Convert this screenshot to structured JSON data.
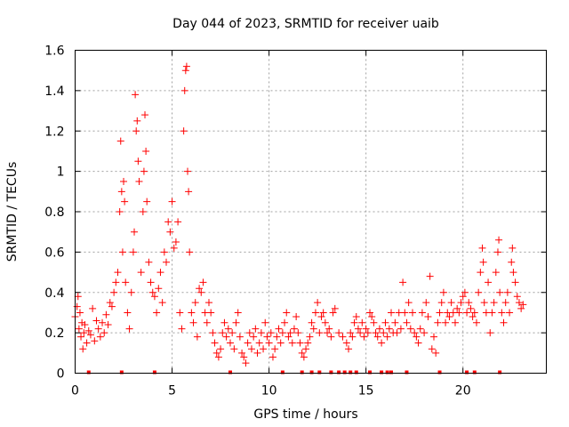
{
  "chart_data": {
    "type": "scatter",
    "title": "Day 044 of 2023, SRMTID for receiver uaib",
    "xlabel": "GPS time / hours",
    "ylabel": "SRMTID / TECUs",
    "xlim": [
      0,
      24.3
    ],
    "ylim": [
      0,
      1.6
    ],
    "x_ticks": [
      0,
      5,
      10,
      15,
      20
    ],
    "y_ticks": [
      0,
      0.2,
      0.4,
      0.6,
      0.8,
      1,
      1.2,
      1.4,
      1.6
    ],
    "x_tick_labels": [
      "0",
      "5",
      "10",
      "15",
      "20"
    ],
    "y_tick_labels": [
      "0",
      "0.2",
      "0.4",
      "0.6",
      "0.8",
      "1",
      "1.2",
      "1.4",
      "1.6"
    ],
    "grid": true,
    "marker": "plus",
    "color": "#ff0000",
    "series": [
      {
        "name": "SRMTID",
        "points": [
          [
            0.0,
            0.28
          ],
          [
            0.1,
            0.33
          ],
          [
            0.15,
            0.38
          ],
          [
            0.2,
            0.22
          ],
          [
            0.25,
            0.3
          ],
          [
            0.3,
            0.18
          ],
          [
            0.35,
            0.25
          ],
          [
            0.4,
            0.12
          ],
          [
            0.45,
            0.2
          ],
          [
            0.5,
            0.24
          ],
          [
            0.6,
            0.15
          ],
          [
            0.7,
            0.21
          ],
          [
            0.8,
            0.19
          ],
          [
            0.9,
            0.32
          ],
          [
            1.0,
            0.16
          ],
          [
            1.1,
            0.26
          ],
          [
            1.2,
            0.22
          ],
          [
            1.3,
            0.18
          ],
          [
            1.4,
            0.25
          ],
          [
            1.5,
            0.2
          ],
          [
            1.6,
            0.29
          ],
          [
            1.7,
            0.24
          ],
          [
            1.8,
            0.35
          ],
          [
            1.9,
            0.33
          ],
          [
            2.0,
            0.4
          ],
          [
            2.1,
            0.45
          ],
          [
            2.2,
            0.5
          ],
          [
            2.3,
            0.8
          ],
          [
            2.35,
            1.15
          ],
          [
            2.4,
            0.9
          ],
          [
            2.45,
            0.6
          ],
          [
            2.5,
            0.95
          ],
          [
            2.55,
            0.85
          ],
          [
            2.6,
            0.45
          ],
          [
            2.7,
            0.3
          ],
          [
            2.8,
            0.22
          ],
          [
            2.9,
            0.4
          ],
          [
            3.0,
            0.6
          ],
          [
            3.05,
            0.7
          ],
          [
            3.1,
            1.38
          ],
          [
            3.15,
            1.2
          ],
          [
            3.2,
            1.25
          ],
          [
            3.25,
            1.05
          ],
          [
            3.3,
            0.95
          ],
          [
            3.4,
            0.5
          ],
          [
            3.5,
            0.8
          ],
          [
            3.55,
            1.0
          ],
          [
            3.6,
            1.28
          ],
          [
            3.65,
            1.1
          ],
          [
            3.7,
            0.85
          ],
          [
            3.8,
            0.55
          ],
          [
            3.9,
            0.45
          ],
          [
            4.0,
            0.4
          ],
          [
            4.1,
            0.38
          ],
          [
            4.2,
            0.3
          ],
          [
            4.3,
            0.42
          ],
          [
            4.4,
            0.5
          ],
          [
            4.5,
            0.35
          ],
          [
            4.6,
            0.6
          ],
          [
            4.7,
            0.55
          ],
          [
            4.8,
            0.75
          ],
          [
            4.9,
            0.7
          ],
          [
            5.0,
            0.85
          ],
          [
            5.1,
            0.62
          ],
          [
            5.2,
            0.65
          ],
          [
            5.3,
            0.75
          ],
          [
            5.4,
            0.3
          ],
          [
            5.5,
            0.22
          ],
          [
            5.6,
            1.2
          ],
          [
            5.65,
            1.4
          ],
          [
            5.7,
            1.5
          ],
          [
            5.75,
            1.52
          ],
          [
            5.8,
            1.0
          ],
          [
            5.85,
            0.9
          ],
          [
            5.9,
            0.6
          ],
          [
            6.0,
            0.3
          ],
          [
            6.1,
            0.25
          ],
          [
            6.2,
            0.35
          ],
          [
            6.3,
            0.18
          ],
          [
            6.4,
            0.42
          ],
          [
            6.5,
            0.4
          ],
          [
            6.6,
            0.45
          ],
          [
            6.7,
            0.3
          ],
          [
            6.8,
            0.25
          ],
          [
            6.9,
            0.35
          ],
          [
            7.0,
            0.3
          ],
          [
            7.1,
            0.2
          ],
          [
            7.2,
            0.15
          ],
          [
            7.3,
            0.1
          ],
          [
            7.4,
            0.08
          ],
          [
            7.5,
            0.12
          ],
          [
            7.6,
            0.2
          ],
          [
            7.7,
            0.25
          ],
          [
            7.8,
            0.18
          ],
          [
            7.9,
            0.22
          ],
          [
            8.0,
            0.15
          ],
          [
            8.1,
            0.2
          ],
          [
            8.2,
            0.12
          ],
          [
            8.3,
            0.25
          ],
          [
            8.4,
            0.3
          ],
          [
            8.5,
            0.18
          ],
          [
            8.6,
            0.1
          ],
          [
            8.7,
            0.08
          ],
          [
            8.8,
            0.05
          ],
          [
            8.9,
            0.15
          ],
          [
            9.0,
            0.2
          ],
          [
            9.1,
            0.12
          ],
          [
            9.2,
            0.18
          ],
          [
            9.3,
            0.22
          ],
          [
            9.4,
            0.1
          ],
          [
            9.5,
            0.15
          ],
          [
            9.6,
            0.2
          ],
          [
            9.7,
            0.12
          ],
          [
            9.8,
            0.25
          ],
          [
            9.9,
            0.18
          ],
          [
            10.0,
            0.15
          ],
          [
            10.1,
            0.2
          ],
          [
            10.2,
            0.08
          ],
          [
            10.3,
            0.12
          ],
          [
            10.4,
            0.18
          ],
          [
            10.5,
            0.22
          ],
          [
            10.6,
            0.15
          ],
          [
            10.7,
            0.2
          ],
          [
            10.8,
            0.25
          ],
          [
            10.9,
            0.3
          ],
          [
            11.0,
            0.18
          ],
          [
            11.1,
            0.2
          ],
          [
            11.2,
            0.15
          ],
          [
            11.3,
            0.22
          ],
          [
            11.4,
            0.28
          ],
          [
            11.5,
            0.2
          ],
          [
            11.6,
            0.15
          ],
          [
            11.7,
            0.1
          ],
          [
            11.8,
            0.08
          ],
          [
            11.9,
            0.12
          ],
          [
            12.0,
            0.15
          ],
          [
            12.1,
            0.18
          ],
          [
            12.2,
            0.25
          ],
          [
            12.3,
            0.22
          ],
          [
            12.4,
            0.3
          ],
          [
            12.5,
            0.35
          ],
          [
            12.6,
            0.2
          ],
          [
            12.7,
            0.28
          ],
          [
            12.8,
            0.3
          ],
          [
            12.9,
            0.25
          ],
          [
            13.0,
            0.2
          ],
          [
            13.1,
            0.22
          ],
          [
            13.2,
            0.18
          ],
          [
            13.3,
            0.3
          ],
          [
            13.4,
            0.32
          ],
          [
            13.6,
            0.2
          ],
          [
            13.8,
            0.18
          ],
          [
            14.0,
            0.15
          ],
          [
            14.1,
            0.12
          ],
          [
            14.2,
            0.2
          ],
          [
            14.3,
            0.18
          ],
          [
            14.4,
            0.25
          ],
          [
            14.5,
            0.28
          ],
          [
            14.6,
            0.22
          ],
          [
            14.7,
            0.2
          ],
          [
            14.8,
            0.25
          ],
          [
            14.9,
            0.18
          ],
          [
            15.0,
            0.22
          ],
          [
            15.1,
            0.2
          ],
          [
            15.2,
            0.3
          ],
          [
            15.3,
            0.28
          ],
          [
            15.4,
            0.25
          ],
          [
            15.5,
            0.2
          ],
          [
            15.6,
            0.18
          ],
          [
            15.7,
            0.22
          ],
          [
            15.8,
            0.15
          ],
          [
            15.9,
            0.2
          ],
          [
            16.0,
            0.25
          ],
          [
            16.1,
            0.18
          ],
          [
            16.2,
            0.22
          ],
          [
            16.3,
            0.3
          ],
          [
            16.4,
            0.2
          ],
          [
            16.5,
            0.25
          ],
          [
            16.6,
            0.2
          ],
          [
            16.7,
            0.3
          ],
          [
            16.8,
            0.22
          ],
          [
            16.9,
            0.45
          ],
          [
            17.0,
            0.3
          ],
          [
            17.1,
            0.25
          ],
          [
            17.2,
            0.35
          ],
          [
            17.3,
            0.22
          ],
          [
            17.4,
            0.3
          ],
          [
            17.5,
            0.2
          ],
          [
            17.6,
            0.18
          ],
          [
            17.7,
            0.15
          ],
          [
            17.8,
            0.22
          ],
          [
            17.9,
            0.3
          ],
          [
            18.0,
            0.2
          ],
          [
            18.1,
            0.35
          ],
          [
            18.2,
            0.28
          ],
          [
            18.3,
            0.48
          ],
          [
            18.4,
            0.12
          ],
          [
            18.5,
            0.18
          ],
          [
            18.6,
            0.1
          ],
          [
            18.7,
            0.25
          ],
          [
            18.8,
            0.3
          ],
          [
            18.9,
            0.35
          ],
          [
            19.0,
            0.4
          ],
          [
            19.1,
            0.25
          ],
          [
            19.2,
            0.3
          ],
          [
            19.3,
            0.28
          ],
          [
            19.4,
            0.35
          ],
          [
            19.5,
            0.3
          ],
          [
            19.6,
            0.25
          ],
          [
            19.7,
            0.32
          ],
          [
            19.8,
            0.3
          ],
          [
            19.9,
            0.35
          ],
          [
            20.0,
            0.38
          ],
          [
            20.1,
            0.4
          ],
          [
            20.2,
            0.3
          ],
          [
            20.3,
            0.35
          ],
          [
            20.4,
            0.32
          ],
          [
            20.5,
            0.28
          ],
          [
            20.6,
            0.3
          ],
          [
            20.7,
            0.25
          ],
          [
            20.8,
            0.4
          ],
          [
            20.9,
            0.5
          ],
          [
            21.0,
            0.62
          ],
          [
            21.05,
            0.55
          ],
          [
            21.1,
            0.35
          ],
          [
            21.2,
            0.3
          ],
          [
            21.3,
            0.45
          ],
          [
            21.4,
            0.2
          ],
          [
            21.5,
            0.3
          ],
          [
            21.6,
            0.35
          ],
          [
            21.7,
            0.5
          ],
          [
            21.8,
            0.6
          ],
          [
            21.85,
            0.66
          ],
          [
            21.9,
            0.4
          ],
          [
            22.0,
            0.3
          ],
          [
            22.1,
            0.25
          ],
          [
            22.2,
            0.35
          ],
          [
            22.3,
            0.4
          ],
          [
            22.4,
            0.3
          ],
          [
            22.5,
            0.55
          ],
          [
            22.55,
            0.62
          ],
          [
            22.6,
            0.5
          ],
          [
            22.7,
            0.45
          ],
          [
            22.8,
            0.38
          ],
          [
            22.9,
            0.35
          ],
          [
            23.0,
            0.32
          ],
          [
            23.1,
            0.34
          ]
        ]
      }
    ],
    "zero_markers_x": [
      0.7,
      2.4,
      4.1,
      8.0,
      10.7,
      11.7,
      12.2,
      12.6,
      13.2,
      13.6,
      13.9,
      14.2,
      14.5,
      15.2,
      15.8,
      16.1,
      16.3,
      17.1,
      18.8,
      20.2,
      20.6,
      21.9
    ]
  }
}
